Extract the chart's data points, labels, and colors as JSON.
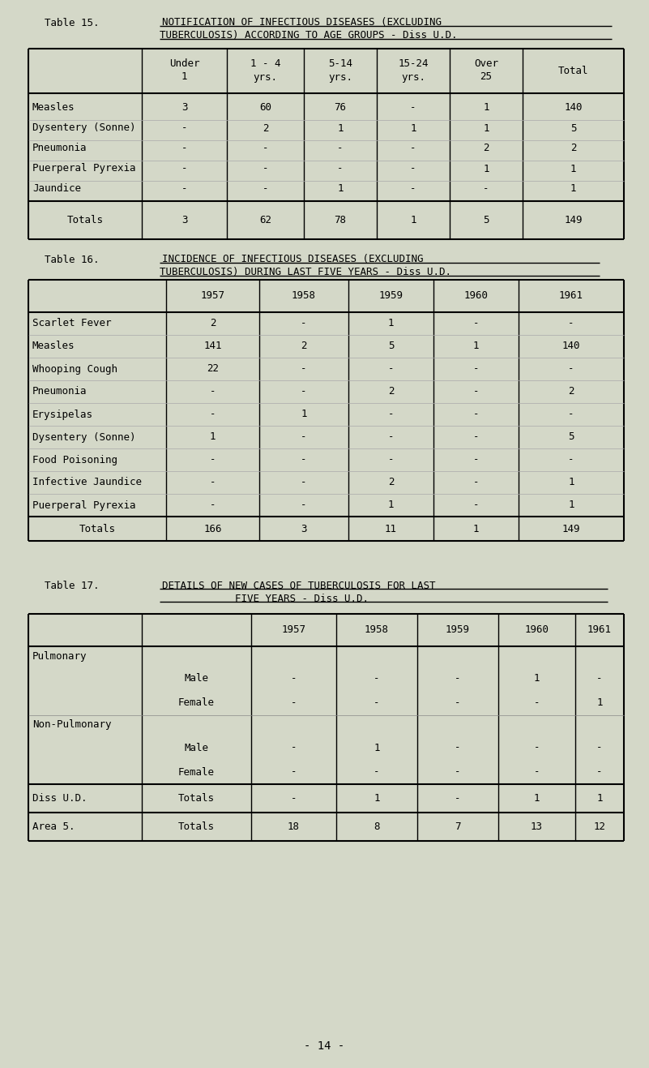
{
  "bg_color": "#d4d8c8",
  "text_color": "#000000",
  "page_number": "- 14 -",
  "table15": {
    "title_prefix": "Table 15.",
    "title_main": "NOTIFICATION OF INFECTIOUS DISEASES (EXCLUDING",
    "title_sub": "TUBERCULOSIS) ACCORDING TO AGE GROUPS - Diss U.D.",
    "col_headers": [
      "Under\n1",
      "1 - 4\nyrs.",
      "5-14\nyrs.",
      "15-24\nyrs.",
      "Over\n25",
      "Total"
    ],
    "row_labels": [
      "Measles",
      "Dysentery (Sonne)",
      "Pneumonia",
      "Puerperal Pyrexia",
      "Jaundice"
    ],
    "data": [
      [
        "3",
        "60",
        "76",
        "-",
        "1",
        "140"
      ],
      [
        "-",
        "2",
        "1",
        "1",
        "1",
        "5"
      ],
      [
        "-",
        "-",
        "-",
        "-",
        "2",
        "2"
      ],
      [
        "-",
        "-",
        "-",
        "-",
        "1",
        "1"
      ],
      [
        "-",
        "-",
        "1",
        "-",
        "-",
        "1"
      ]
    ],
    "totals_label": "Totals",
    "totals_data": [
      "3",
      "62",
      "78",
      "1",
      "5",
      "149"
    ]
  },
  "table16": {
    "title_prefix": "Table 16.",
    "title_main": "INCIDENCE OF INFECTIOUS DISEASES (EXCLUDING",
    "title_sub": "TUBERCULOSIS) DURING LAST FIVE YEARS - Diss U.D.",
    "col_headers": [
      "1957",
      "1958",
      "1959",
      "1960",
      "1961"
    ],
    "row_labels": [
      "Scarlet Fever",
      "Measles",
      "Whooping Cough",
      "Pneumonia",
      "Erysipelas",
      "Dysentery (Sonne)",
      "Food Poisoning",
      "Infective Jaundice",
      "Puerperal Pyrexia"
    ],
    "data": [
      [
        "2",
        "-",
        "1",
        "-",
        "-"
      ],
      [
        "141",
        "2",
        "5",
        "1",
        "140"
      ],
      [
        "22",
        "-",
        "-",
        "-",
        "-"
      ],
      [
        "-",
        "-",
        "2",
        "-",
        "2"
      ],
      [
        "-",
        "1",
        "-",
        "-",
        "-"
      ],
      [
        "1",
        "-",
        "-",
        "-",
        "5"
      ],
      [
        "-",
        "-",
        "-",
        "-",
        "-"
      ],
      [
        "-",
        "-",
        "2",
        "-",
        "1"
      ],
      [
        "-",
        "-",
        "1",
        "-",
        "1"
      ]
    ],
    "totals_label": "Totals",
    "totals_data": [
      "166",
      "3",
      "11",
      "1",
      "149"
    ]
  },
  "table17": {
    "title_prefix": "Table 17.",
    "title_main": "DETAILS OF NEW CASES OF TUBERCULOSIS FOR LAST",
    "title_sub": "FIVE YEARS - Diss U.D.",
    "col_headers": [
      "1957",
      "1958",
      "1959",
      "1960",
      "1961"
    ],
    "sections": [
      {
        "label": "Pulmonary",
        "rows": [
          {
            "sublabel": "Male",
            "data": [
              "-",
              "-",
              "-",
              "1",
              "-"
            ]
          },
          {
            "sublabel": "Female",
            "data": [
              "-",
              "-",
              "-",
              "-",
              "1"
            ]
          }
        ]
      },
      {
        "label": "Non-Pulmonary",
        "rows": [
          {
            "sublabel": "Male",
            "data": [
              "-",
              "1",
              "-",
              "-",
              "-"
            ]
          },
          {
            "sublabel": "Female",
            "data": [
              "-",
              "-",
              "-",
              "-",
              "-"
            ]
          }
        ]
      }
    ],
    "diss_ud_label": "Diss U.D.",
    "diss_ud_sub": "Totals",
    "diss_ud_data": [
      "-",
      "1",
      "-",
      "1",
      "1"
    ],
    "area5_label": "Area 5.",
    "area5_sub": "Totals",
    "area5_data": [
      "18",
      "8",
      "7",
      "13",
      "12"
    ]
  }
}
